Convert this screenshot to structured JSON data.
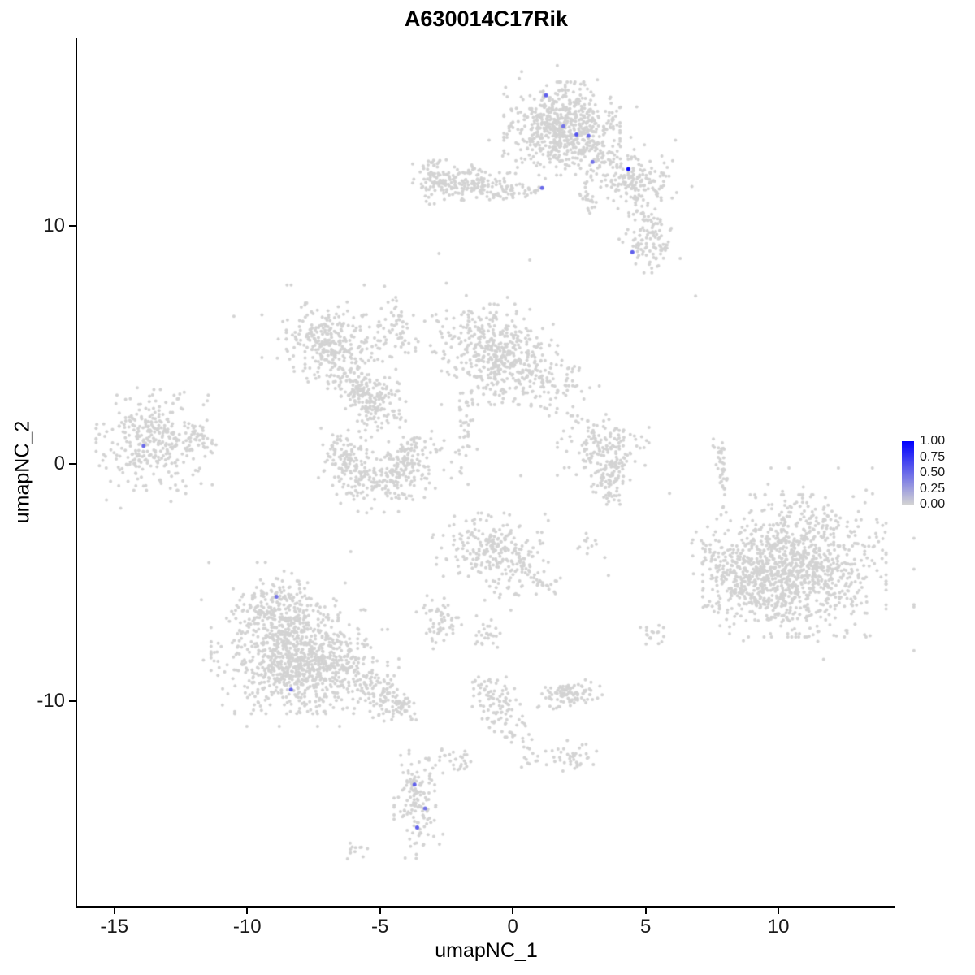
{
  "legend": {
    "labels": [
      "1.00",
      "0.75",
      "0.50",
      "0.25",
      "0.00"
    ]
  },
  "chart_data": {
    "type": "scatter",
    "title": "A630014C17Rik",
    "xlabel": "umapNC_1",
    "ylabel": "umapNC_2",
    "xlim": [
      -16.4,
      14.4
    ],
    "ylim": [
      -18.6,
      17.9
    ],
    "xticks": [
      -15,
      -10,
      -5,
      0,
      5,
      10
    ],
    "yticks": [
      -10,
      0,
      10
    ],
    "grid": false,
    "legend_info": {
      "position": "right",
      "ticks": [
        1.0,
        0.75,
        0.5,
        0.25,
        0.0
      ],
      "low_color": "#d3d3d3",
      "high_color": "#0000ff"
    },
    "point_color": "#d3d3d3",
    "background_clusters": [
      {
        "t": "b",
        "x": 1.85,
        "y": 14.1,
        "sx": 0.95,
        "sy": 0.85,
        "n": 620
      },
      {
        "t": "b",
        "x": 1.85,
        "y": 14.1,
        "sx": 1.35,
        "sy": 1.15,
        "n": 70
      },
      {
        "t": "t",
        "x1": 2.9,
        "y1": 13.4,
        "x2": 4.5,
        "y2": 12.1,
        "w": 0.3,
        "n": 60
      },
      {
        "t": "b",
        "x": 4.75,
        "y": 11.75,
        "sx": 0.55,
        "sy": 0.5,
        "n": 90
      },
      {
        "t": "b",
        "x": 4.9,
        "y": 11.9,
        "sx": 0.85,
        "sy": 0.75,
        "n": 50
      },
      {
        "t": "t",
        "x1": 4.95,
        "y1": 10.7,
        "x2": 5.1,
        "y2": 10.0,
        "w": 0.25,
        "n": 20
      },
      {
        "t": "b",
        "x": 5.15,
        "y": 9.3,
        "sx": 0.5,
        "sy": 0.55,
        "n": 90
      },
      {
        "t": "b",
        "x": -1.7,
        "y": 11.85,
        "sx": 0.9,
        "sy": 0.33,
        "n": 170
      },
      {
        "t": "b",
        "x": -2.95,
        "y": 11.9,
        "sx": 0.35,
        "sy": 0.5,
        "n": 55
      },
      {
        "t": "t",
        "x1": -0.6,
        "y1": 11.5,
        "x2": 0.95,
        "y2": 11.45,
        "w": 0.22,
        "n": 35
      },
      {
        "t": "t",
        "x1": 2.75,
        "y1": 12.1,
        "x2": 2.9,
        "y2": 10.4,
        "w": 0.16,
        "n": 26
      },
      {
        "t": "b",
        "x": -6.8,
        "y": 5.1,
        "sx": 0.75,
        "sy": 0.72,
        "n": 260
      },
      {
        "t": "b",
        "x": -6.8,
        "y": 5.1,
        "sx": 1.15,
        "sy": 1.05,
        "n": 50
      },
      {
        "t": "t",
        "x1": -6.3,
        "y1": 3.9,
        "x2": -5.05,
        "y2": 1.95,
        "w": 0.33,
        "n": 85
      },
      {
        "t": "b",
        "x": -4.3,
        "y": 5.4,
        "sx": 0.8,
        "sy": 0.55,
        "n": 48
      },
      {
        "t": "t",
        "x1": -4.5,
        "y1": 6.9,
        "x2": -4.3,
        "y2": 5.8,
        "w": 0.14,
        "n": 20
      },
      {
        "t": "b",
        "x": -5.2,
        "y": 2.65,
        "sx": 0.55,
        "sy": 0.8,
        "n": 140
      },
      {
        "t": "a",
        "x": -5.0,
        "y": 0.35,
        "r": 1.35,
        "a1": 150,
        "a2": 390,
        "w": 0.5,
        "n": 370
      },
      {
        "t": "b",
        "x": -0.5,
        "y": 4.6,
        "sx": 0.95,
        "sy": 0.92,
        "n": 390
      },
      {
        "t": "b",
        "x": 1.3,
        "y": 3.4,
        "sx": 0.85,
        "sy": 0.6,
        "n": 110
      },
      {
        "t": "b",
        "x": -1.9,
        "y": 5.6,
        "sx": 0.5,
        "sy": 0.65,
        "n": 45
      },
      {
        "t": "t",
        "x1": -1.85,
        "y1": 3.1,
        "x2": -1.7,
        "y2": 1.1,
        "w": 0.18,
        "n": 28
      },
      {
        "t": "t",
        "x1": -1.7,
        "y1": 0.9,
        "x2": -2.2,
        "y2": -0.6,
        "w": 0.28,
        "n": 14
      },
      {
        "t": "b",
        "x": -13.5,
        "y": 1.0,
        "sx": 0.95,
        "sy": 0.92,
        "n": 290
      },
      {
        "t": "t",
        "x1": -12.5,
        "y1": 1.3,
        "x2": -11.4,
        "y2": 0.85,
        "w": 0.35,
        "n": 40
      },
      {
        "t": "b",
        "x": -13.4,
        "y": 1.0,
        "sx": 1.35,
        "sy": 1.25,
        "n": 45
      },
      {
        "t": "b",
        "x": 3.4,
        "y": 0.7,
        "sx": 0.75,
        "sy": 0.6,
        "n": 150
      },
      {
        "t": "t",
        "x1": 3.9,
        "y1": 0.1,
        "x2": 3.5,
        "y2": -1.5,
        "w": 0.32,
        "n": 85
      },
      {
        "t": "t",
        "x1": 7.72,
        "y1": 0.85,
        "x2": 7.95,
        "y2": -1.1,
        "w": 0.11,
        "n": 40
      },
      {
        "t": "b",
        "x": 10.6,
        "y": -4.3,
        "sx": 1.5,
        "sy": 1.3,
        "n": 950
      },
      {
        "t": "b",
        "x": 9.3,
        "y": -5.2,
        "sx": 0.9,
        "sy": 0.85,
        "n": 200
      },
      {
        "t": "b",
        "x": 10.5,
        "y": -4.2,
        "sx": 2.0,
        "sy": 1.75,
        "n": 140
      },
      {
        "t": "t",
        "x1": 7.4,
        "y1": -3.6,
        "x2": 8.4,
        "y2": -4.4,
        "w": 0.4,
        "n": 40
      },
      {
        "t": "b",
        "x": -0.85,
        "y": -3.5,
        "sx": 0.95,
        "sy": 0.62,
        "n": 230
      },
      {
        "t": "t",
        "x1": 0.3,
        "y1": -4.2,
        "x2": 1.5,
        "y2": -5.3,
        "w": 0.3,
        "n": 45
      },
      {
        "t": "b",
        "x": -0.3,
        "y": -5.4,
        "sx": 0.5,
        "sy": 0.45,
        "n": 22
      },
      {
        "t": "b",
        "x": -2.85,
        "y": -6.7,
        "sx": 0.4,
        "sy": 0.5,
        "n": 55
      },
      {
        "t": "b",
        "x": -1.1,
        "y": -7.2,
        "sx": 0.27,
        "sy": 0.35,
        "n": 25
      },
      {
        "t": "b",
        "x": 2.8,
        "y": -3.3,
        "sx": 0.3,
        "sy": 0.3,
        "n": 12
      },
      {
        "t": "b",
        "x": 5.3,
        "y": -7.2,
        "sx": 0.3,
        "sy": 0.28,
        "n": 18
      },
      {
        "t": "b",
        "x": -8.8,
        "y": -5.9,
        "sx": 0.75,
        "sy": 0.6,
        "n": 170
      },
      {
        "t": "b",
        "x": -8.6,
        "y": -8.1,
        "sx": 1.2,
        "sy": 1.05,
        "n": 650
      },
      {
        "t": "b",
        "x": -6.9,
        "y": -8.7,
        "sx": 0.95,
        "sy": 0.75,
        "n": 280
      },
      {
        "t": "t",
        "x1": -5.7,
        "y1": -9.2,
        "x2": -4.1,
        "y2": -10.5,
        "w": 0.4,
        "n": 130
      },
      {
        "t": "b",
        "x": -8.2,
        "y": -7.6,
        "sx": 1.7,
        "sy": 1.5,
        "n": 90
      },
      {
        "t": "b",
        "x": -0.6,
        "y": -10.0,
        "sx": 0.45,
        "sy": 0.55,
        "n": 60
      },
      {
        "t": "t",
        "x1": -0.3,
        "y1": -10.6,
        "x2": 0.6,
        "y2": -12.3,
        "w": 0.3,
        "n": 42
      },
      {
        "t": "t",
        "x1": -1.35,
        "y1": -9.3,
        "x2": -0.7,
        "y2": -10.0,
        "w": 0.3,
        "n": 18
      },
      {
        "t": "b",
        "x": 2.1,
        "y": -9.7,
        "sx": 0.55,
        "sy": 0.3,
        "n": 95
      },
      {
        "t": "b",
        "x": -3.55,
        "y": -14.3,
        "sx": 0.4,
        "sy": 1.0,
        "n": 130
      },
      {
        "t": "t",
        "x1": -3.95,
        "y1": -12.9,
        "x2": -3.65,
        "y2": -13.7,
        "w": 0.15,
        "n": 12
      },
      {
        "t": "b",
        "x": -2.1,
        "y": -12.5,
        "sx": 0.3,
        "sy": 0.3,
        "n": 25
      },
      {
        "t": "b",
        "x": 2.2,
        "y": -12.4,
        "sx": 0.42,
        "sy": 0.33,
        "n": 40
      },
      {
        "t": "b",
        "x": -5.85,
        "y": -16.2,
        "sx": 0.3,
        "sy": 0.18,
        "n": 12
      },
      {
        "t": "p",
        "pts": [
          [
            -10.5,
            6.2
          ],
          [
            -4.83,
            7.47
          ],
          [
            -2.78,
            8.84
          ],
          [
            0.64,
            8.57
          ],
          [
            6.88,
            7.06
          ],
          [
            -2.2,
            -2.2
          ],
          [
            3.6,
            -4.7
          ],
          [
            -6.1,
            -3.7
          ],
          [
            2.9,
            3.2
          ],
          [
            0.3,
            -0.5
          ],
          [
            -2.5,
            7.6
          ],
          [
            -0.2,
            7.0
          ]
        ]
      }
    ],
    "expressing_cells": [
      {
        "x": 1.25,
        "y": 15.5,
        "value": 0.55
      },
      {
        "x": 1.9,
        "y": 14.2,
        "value": 0.45
      },
      {
        "x": 2.4,
        "y": 13.85,
        "value": 0.6
      },
      {
        "x": 2.85,
        "y": 13.8,
        "value": 0.5
      },
      {
        "x": 3.0,
        "y": 12.7,
        "value": 0.45
      },
      {
        "x": 4.35,
        "y": 12.4,
        "value": 0.95
      },
      {
        "x": 1.1,
        "y": 11.6,
        "value": 0.5
      },
      {
        "x": 4.5,
        "y": 8.9,
        "value": 0.55
      },
      {
        "x": -13.9,
        "y": 0.75,
        "value": 0.5
      },
      {
        "x": -8.9,
        "y": -5.6,
        "value": 0.45
      },
      {
        "x": -8.35,
        "y": -9.5,
        "value": 0.5
      },
      {
        "x": -3.7,
        "y": -13.5,
        "value": 0.55
      },
      {
        "x": -3.3,
        "y": -14.5,
        "value": 0.45
      },
      {
        "x": -3.6,
        "y": -15.3,
        "value": 0.55
      }
    ]
  }
}
